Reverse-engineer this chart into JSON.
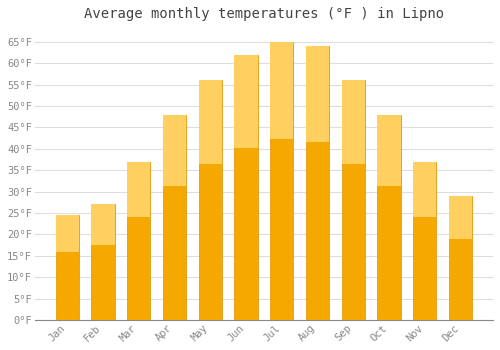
{
  "title": "Average monthly temperatures (°F ) in Lipno",
  "months": [
    "Jan",
    "Feb",
    "Mar",
    "Apr",
    "May",
    "Jun",
    "Jul",
    "Aug",
    "Sep",
    "Oct",
    "Nov",
    "Dec"
  ],
  "values": [
    24.5,
    27,
    37,
    48,
    56,
    62,
    65,
    64,
    56,
    48,
    37,
    29
  ],
  "bar_color_bottom": "#F5A800",
  "bar_color_top": "#FFD060",
  "bar_edge_color": "#E09000",
  "background_color": "#FFFFFF",
  "plot_bg_color": "#FFFFFF",
  "grid_color": "#DDDDDD",
  "ylim": [
    0,
    68
  ],
  "yticks": [
    0,
    5,
    10,
    15,
    20,
    25,
    30,
    35,
    40,
    45,
    50,
    55,
    60,
    65
  ],
  "ytick_labels": [
    "0°F",
    "5°F",
    "10°F",
    "15°F",
    "20°F",
    "25°F",
    "30°F",
    "35°F",
    "40°F",
    "45°F",
    "50°F",
    "55°F",
    "60°F",
    "65°F"
  ],
  "title_fontsize": 10,
  "tick_fontsize": 7.5,
  "label_color": "#888888",
  "title_color": "#444444"
}
